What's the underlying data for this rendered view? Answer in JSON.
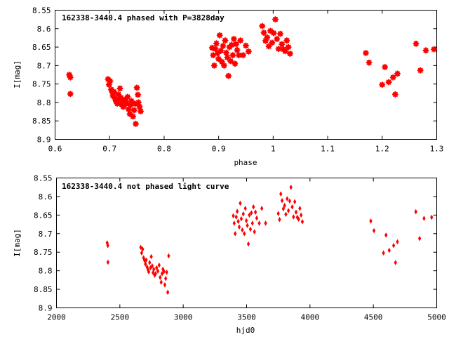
{
  "chart_data": [
    {
      "type": "scatter",
      "title": "162338-3440.4 phased with P=3828day",
      "xlabel": "phase",
      "ylabel": "I[mag]",
      "xlim": [
        0.6,
        1.3
      ],
      "ylim": [
        8.55,
        8.9
      ],
      "y_inverted": true,
      "xticks": [
        0.6,
        0.7,
        0.8,
        0.9,
        1.0,
        1.1,
        1.2,
        1.3
      ],
      "xticklabels": [
        "0.6",
        "0.7",
        "0.8",
        "0.9",
        "1",
        "1.1",
        "1.2",
        "1.3"
      ],
      "yticks": [
        8.55,
        8.6,
        8.65,
        8.7,
        8.75,
        8.8,
        8.85,
        8.9
      ],
      "yticklabels": [
        "8.55",
        "8.6",
        "8.65",
        "8.7",
        "8.75",
        "8.8",
        "8.85",
        "8.9"
      ],
      "grid": false,
      "marker": "star",
      "color": "#ff0000",
      "x": [
        0.626,
        0.628,
        0.628,
        0.697,
        0.699,
        0.701,
        0.703,
        0.705,
        0.706,
        0.708,
        0.71,
        0.712,
        0.714,
        0.716,
        0.717,
        0.719,
        0.721,
        0.722,
        0.724,
        0.725,
        0.727,
        0.729,
        0.731,
        0.733,
        0.735,
        0.737,
        0.738,
        0.74,
        0.742,
        0.743,
        0.745,
        0.747,
        0.748,
        0.75,
        0.752,
        0.753,
        0.755,
        0.757,
        0.888,
        0.89,
        0.892,
        0.894,
        0.896,
        0.898,
        0.9,
        0.902,
        0.904,
        0.906,
        0.908,
        0.91,
        0.912,
        0.914,
        0.916,
        0.918,
        0.92,
        0.922,
        0.924,
        0.926,
        0.928,
        0.93,
        0.932,
        0.934,
        0.937,
        0.94,
        0.945,
        0.95,
        0.955,
        0.98,
        0.983,
        0.986,
        0.989,
        0.992,
        0.995,
        0.998,
        1.001,
        1.004,
        1.007,
        1.01,
        1.013,
        1.016,
        1.019,
        1.022,
        1.025,
        1.028,
        1.031,
        1.17,
        1.176,
        1.2,
        1.205,
        1.212,
        1.22,
        1.224,
        1.228,
        1.262,
        1.27,
        1.28,
        1.295
      ],
      "y": [
        8.725,
        8.732,
        8.777,
        8.737,
        8.752,
        8.742,
        8.765,
        8.772,
        8.782,
        8.771,
        8.79,
        8.797,
        8.803,
        8.778,
        8.792,
        8.762,
        8.787,
        8.805,
        8.796,
        8.812,
        8.808,
        8.792,
        8.801,
        8.785,
        8.818,
        8.831,
        8.808,
        8.796,
        8.802,
        8.838,
        8.821,
        8.804,
        8.858,
        8.76,
        8.779,
        8.8,
        8.812,
        8.824,
        8.652,
        8.672,
        8.7,
        8.655,
        8.64,
        8.667,
        8.682,
        8.618,
        8.66,
        8.69,
        8.647,
        8.7,
        8.632,
        8.665,
        8.678,
        8.728,
        8.65,
        8.688,
        8.644,
        8.672,
        8.628,
        8.695,
        8.642,
        8.658,
        8.672,
        8.632,
        8.672,
        8.646,
        8.662,
        8.593,
        8.611,
        8.633,
        8.624,
        8.648,
        8.606,
        8.638,
        8.612,
        8.575,
        8.628,
        8.655,
        8.614,
        8.642,
        8.656,
        8.661,
        8.632,
        8.65,
        8.668,
        8.666,
        8.692,
        8.752,
        8.704,
        8.745,
        8.732,
        8.778,
        8.722,
        8.641,
        8.713,
        8.659,
        8.656
      ]
    },
    {
      "type": "scatter",
      "title": "162338-3440.4 not phased light curve",
      "xlabel": "hjd0",
      "ylabel": "I[mag]",
      "xlim": [
        2000,
        5000
      ],
      "ylim": [
        8.55,
        8.9
      ],
      "y_inverted": true,
      "xticks": [
        2000,
        2500,
        3000,
        3500,
        4000,
        4500,
        5000
      ],
      "xticklabels": [
        "2000",
        "2500",
        "3000",
        "3500",
        "4000",
        "4500",
        "5000"
      ],
      "yticks": [
        8.55,
        8.6,
        8.65,
        8.7,
        8.75,
        8.8,
        8.85,
        8.9
      ],
      "yticklabels": [
        "8.55",
        "8.6",
        "8.65",
        "8.7",
        "8.75",
        "8.8",
        "8.85",
        "8.9"
      ],
      "grid": false,
      "marker": "diamond",
      "color": "#ff0000",
      "x": [
        2400,
        2405,
        2406,
        2665,
        2672,
        2680,
        2687,
        2695,
        2702,
        2708,
        2715,
        2722,
        2728,
        2735,
        2742,
        2748,
        2755,
        2762,
        2768,
        2775,
        2782,
        2790,
        2800,
        2810,
        2818,
        2826,
        2833,
        2840,
        2848,
        2855,
        2862,
        2870,
        2878,
        2885,
        3395,
        3402,
        3410,
        3418,
        3426,
        3434,
        3442,
        3450,
        3458,
        3466,
        3474,
        3482,
        3490,
        3498,
        3506,
        3514,
        3522,
        3530,
        3538,
        3546,
        3554,
        3562,
        3570,
        3580,
        3600,
        3620,
        3650,
        3750,
        3760,
        3770,
        3780,
        3790,
        3800,
        3810,
        3820,
        3830,
        3840,
        3850,
        3860,
        3870,
        3880,
        3890,
        3900,
        3910,
        3920,
        3930,
        3940,
        4480,
        4505,
        4580,
        4600,
        4625,
        4660,
        4675,
        4690,
        4835,
        4865,
        4900,
        4960
      ],
      "y": [
        8.725,
        8.732,
        8.777,
        8.737,
        8.752,
        8.742,
        8.765,
        8.772,
        8.782,
        8.771,
        8.79,
        8.797,
        8.803,
        8.778,
        8.792,
        8.762,
        8.787,
        8.805,
        8.796,
        8.812,
        8.808,
        8.792,
        8.801,
        8.785,
        8.818,
        8.831,
        8.808,
        8.796,
        8.802,
        8.838,
        8.821,
        8.804,
        8.858,
        8.76,
        8.652,
        8.672,
        8.7,
        8.655,
        8.64,
        8.667,
        8.682,
        8.618,
        8.66,
        8.69,
        8.647,
        8.7,
        8.632,
        8.665,
        8.678,
        8.728,
        8.65,
        8.688,
        8.644,
        8.672,
        8.628,
        8.695,
        8.642,
        8.658,
        8.672,
        8.632,
        8.672,
        8.646,
        8.662,
        8.593,
        8.611,
        8.633,
        8.624,
        8.648,
        8.606,
        8.638,
        8.612,
        8.575,
        8.628,
        8.655,
        8.614,
        8.642,
        8.656,
        8.661,
        8.632,
        8.65,
        8.668,
        8.666,
        8.692,
        8.752,
        8.704,
        8.745,
        8.732,
        8.778,
        8.722,
        8.641,
        8.713,
        8.659,
        8.656
      ]
    }
  ]
}
